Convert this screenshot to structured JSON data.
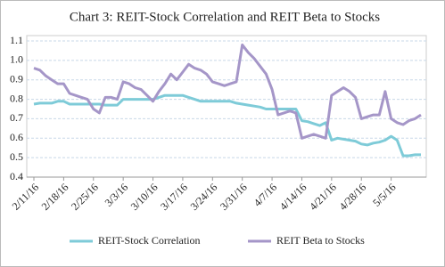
{
  "chart_data": {
    "type": "line",
    "title": "Chart 3: REIT-Stock Correlation and REIT Beta to Stocks",
    "categories": [
      "2/11/16",
      null,
      null,
      null,
      null,
      "2/18/16",
      null,
      null,
      null,
      null,
      "2/25/16",
      null,
      null,
      null,
      null,
      "3/3/16",
      null,
      null,
      null,
      null,
      "3/10/16",
      null,
      null,
      null,
      null,
      "3/17/16",
      null,
      null,
      null,
      null,
      "3/24/16",
      null,
      null,
      null,
      null,
      "3/31/16",
      null,
      null,
      null,
      null,
      "4/7/16",
      null,
      null,
      null,
      null,
      "4/14/16",
      null,
      null,
      null,
      null,
      "4/21/16",
      null,
      null,
      null,
      null,
      "4/28/16",
      null,
      null,
      null,
      null,
      "5/5/16",
      null,
      null,
      null,
      null,
      null
    ],
    "series": [
      {
        "name": "REIT-Stock Correlation",
        "color": "#7ecbd8",
        "values": [
          0.775,
          0.78,
          0.78,
          0.78,
          0.79,
          0.79,
          0.775,
          0.775,
          0.775,
          0.775,
          0.775,
          0.775,
          0.77,
          0.77,
          0.77,
          0.8,
          0.8,
          0.8,
          0.8,
          0.8,
          0.8,
          0.81,
          0.82,
          0.82,
          0.82,
          0.82,
          0.81,
          0.8,
          0.79,
          0.79,
          0.79,
          0.79,
          0.79,
          0.79,
          0.78,
          0.775,
          0.77,
          0.765,
          0.76,
          0.75,
          0.75,
          0.75,
          0.75,
          0.75,
          0.75,
          0.69,
          0.685,
          0.675,
          0.665,
          0.68,
          0.59,
          0.6,
          0.595,
          0.59,
          0.585,
          0.57,
          0.565,
          0.575,
          0.58,
          0.59,
          0.61,
          0.59,
          0.51,
          0.51,
          0.515,
          0.515
        ]
      },
      {
        "name": "REIT Beta to Stocks",
        "color": "#a596c8",
        "values": [
          0.96,
          0.95,
          0.92,
          0.9,
          0.88,
          0.88,
          0.83,
          0.82,
          0.81,
          0.8,
          0.75,
          0.73,
          0.81,
          0.81,
          0.8,
          0.89,
          0.88,
          0.86,
          0.85,
          0.82,
          0.79,
          0.84,
          0.88,
          0.93,
          0.9,
          0.94,
          0.98,
          0.96,
          0.95,
          0.93,
          0.89,
          0.88,
          0.87,
          0.88,
          0.89,
          1.08,
          1.04,
          1.01,
          0.97,
          0.93,
          0.85,
          0.72,
          0.73,
          0.74,
          0.73,
          0.6,
          0.61,
          0.62,
          0.61,
          0.6,
          0.82,
          0.84,
          0.86,
          0.84,
          0.81,
          0.7,
          0.71,
          0.72,
          0.72,
          0.84,
          0.7,
          0.68,
          0.67,
          0.69,
          0.7,
          0.72
        ]
      }
    ],
    "ylim": [
      0.4,
      1.1
    ],
    "yticks": [
      0.4,
      0.5,
      0.6,
      0.7,
      0.8,
      0.9,
      {
        "value": 1,
        "label": "1.0"
      },
      1.1
    ],
    "grid": true
  }
}
